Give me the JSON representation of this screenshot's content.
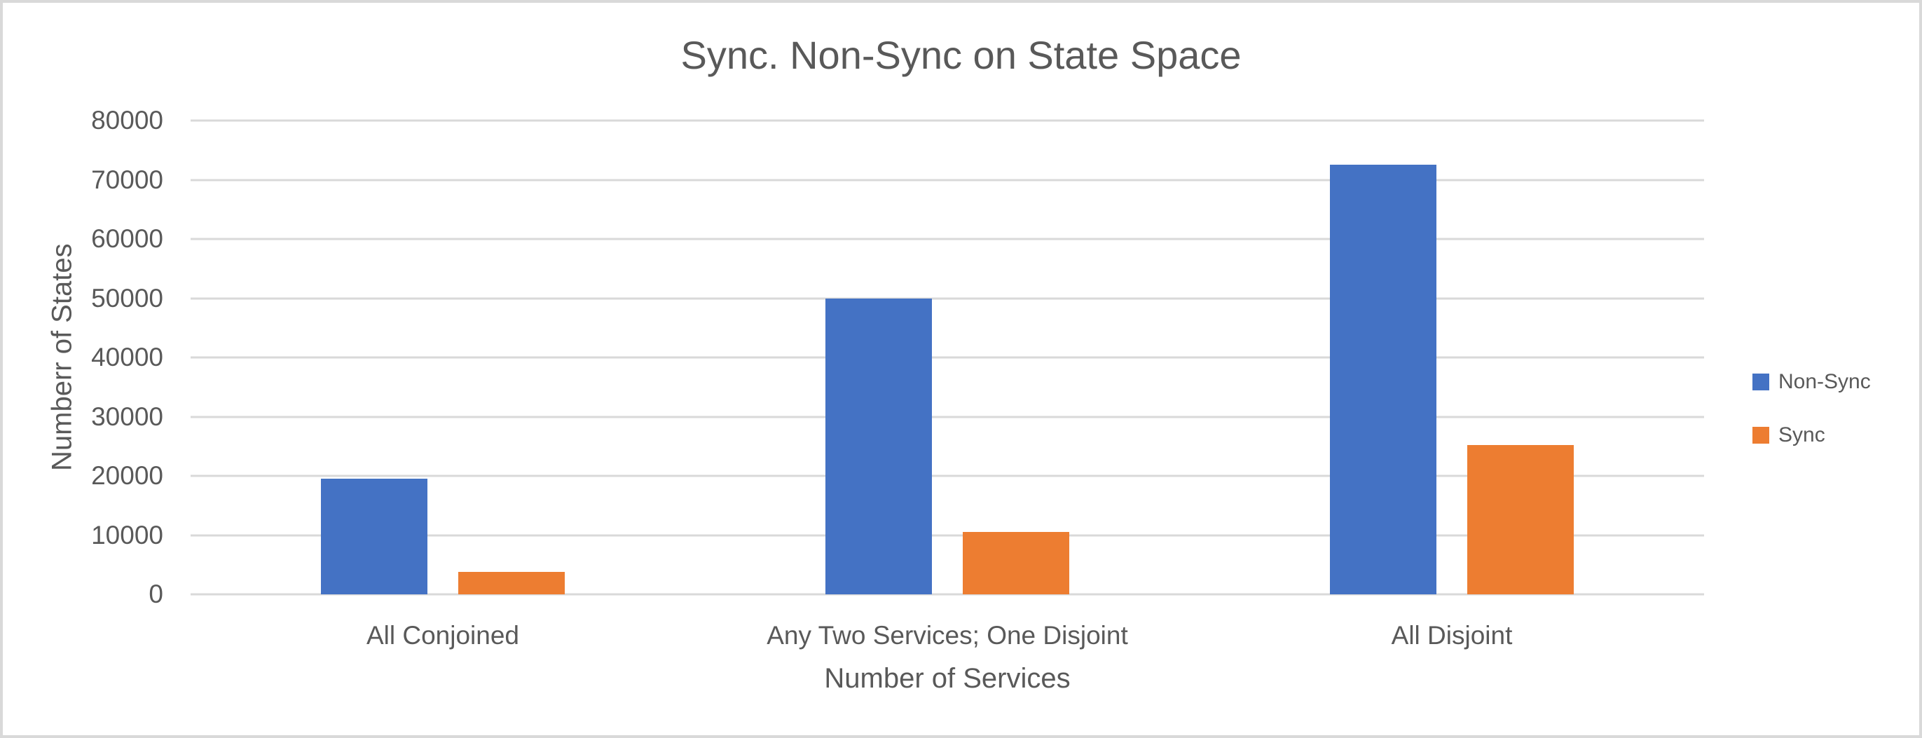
{
  "chart": {
    "title": "Sync. Non-Sync on State Space",
    "x_axis_title": "Number of Services",
    "y_axis_title": "Numberr of States"
  },
  "colors": {
    "non_sync_blue": "#4472C4",
    "sync_orange": "#ED7D31",
    "gridline_gray": "#D9D9D9",
    "text_gray": "#595959",
    "frame_border": "#D9D9D9",
    "background": "#FFFFFF"
  },
  "chart_data": {
    "type": "bar",
    "title": "Sync. Non-Sync on State Space",
    "xlabel": "Number of Services",
    "ylabel": "Numberr of States",
    "categories": [
      "All Conjoined",
      "Any Two Services; One Disjoint",
      "All Disjoint"
    ],
    "series": [
      {
        "name": "Non-Sync",
        "color": "#4472C4",
        "values": [
          19500,
          50000,
          72500
        ]
      },
      {
        "name": "Sync",
        "color": "#ED7D31",
        "values": [
          3800,
          10500,
          25200
        ]
      }
    ],
    "ylim": [
      0,
      80000
    ],
    "ytick_interval": 10000,
    "yticks": [
      0,
      10000,
      20000,
      30000,
      40000,
      50000,
      60000,
      70000,
      80000
    ],
    "grid": true,
    "legend_position": "right"
  }
}
